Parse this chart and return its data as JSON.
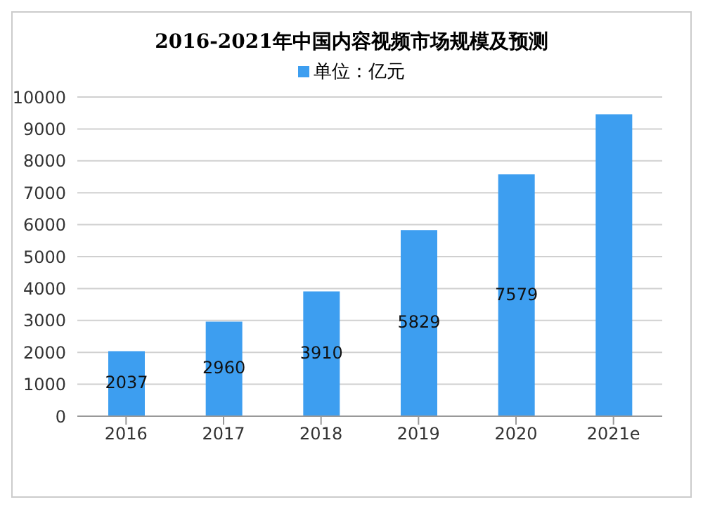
{
  "chart_data": {
    "type": "bar",
    "title": "2016-2021年中国内容视频市场规模及预测",
    "categories": [
      "2016",
      "2017",
      "2018",
      "2019",
      "2020",
      "2021e"
    ],
    "series": [
      {
        "name": "单位：亿元",
        "color": "#3d9ef0",
        "values": [
          2037,
          2960,
          3910,
          5829,
          7579,
          9460
        ],
        "value_labels": [
          "2037",
          "2960",
          "3910",
          "5829",
          "7579",
          null
        ]
      }
    ],
    "ylim": [
      0,
      10000
    ],
    "yticks": [
      0,
      1000,
      2000,
      3000,
      4000,
      5000,
      6000,
      7000,
      8000,
      9000,
      10000
    ],
    "grid": "y",
    "legend": "top"
  }
}
